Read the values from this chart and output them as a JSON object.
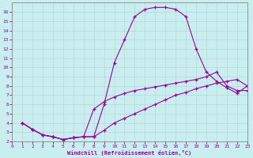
{
  "xlabel": "Windchill (Refroidissement éolien,°C)",
  "background_color": "#c8eef0",
  "line_color": "#990099",
  "grid_color": "#aadddd",
  "xmin": 0,
  "xmax": 23,
  "ymin": 2,
  "ymax": 17,
  "line1_x": [
    1,
    2,
    3,
    4,
    5,
    6,
    7,
    8,
    9,
    10,
    11,
    12,
    13,
    14,
    15,
    16,
    17,
    18,
    19,
    20,
    21,
    22,
    23
  ],
  "line1_y": [
    4.0,
    3.3,
    2.7,
    2.5,
    2.2,
    2.4,
    2.5,
    2.5,
    6.0,
    10.5,
    13.0,
    15.5,
    16.3,
    16.5,
    16.5,
    16.3,
    15.5,
    12.0,
    9.5,
    8.5,
    7.8,
    7.2,
    8.0
  ],
  "line2_x": [
    1,
    2,
    3,
    4,
    5,
    6,
    7,
    8,
    9,
    10,
    11,
    12,
    13,
    14,
    15,
    16,
    17,
    18,
    19,
    20,
    21,
    22,
    23
  ],
  "line2_y": [
    4.0,
    3.3,
    2.7,
    2.5,
    2.2,
    2.4,
    2.5,
    5.5,
    6.3,
    6.8,
    7.2,
    7.5,
    7.7,
    7.9,
    8.1,
    8.3,
    8.5,
    8.7,
    9.0,
    9.5,
    8.0,
    7.5,
    7.5
  ],
  "line3_x": [
    1,
    2,
    3,
    4,
    5,
    6,
    7,
    8,
    9,
    10,
    11,
    12,
    13,
    14,
    15,
    16,
    17,
    18,
    19,
    20,
    21,
    22,
    23
  ],
  "line3_y": [
    4.0,
    3.3,
    2.7,
    2.5,
    2.2,
    2.4,
    2.5,
    2.5,
    3.2,
    4.0,
    4.5,
    5.0,
    5.5,
    6.0,
    6.5,
    7.0,
    7.3,
    7.7,
    8.0,
    8.3,
    8.5,
    8.7,
    8.0
  ],
  "yticks": [
    2,
    3,
    4,
    5,
    6,
    7,
    8,
    9,
    10,
    11,
    12,
    13,
    14,
    15,
    16
  ],
  "xticks": [
    0,
    1,
    2,
    3,
    4,
    5,
    6,
    7,
    8,
    9,
    10,
    11,
    12,
    13,
    14,
    15,
    16,
    17,
    18,
    19,
    20,
    21,
    22,
    23
  ]
}
